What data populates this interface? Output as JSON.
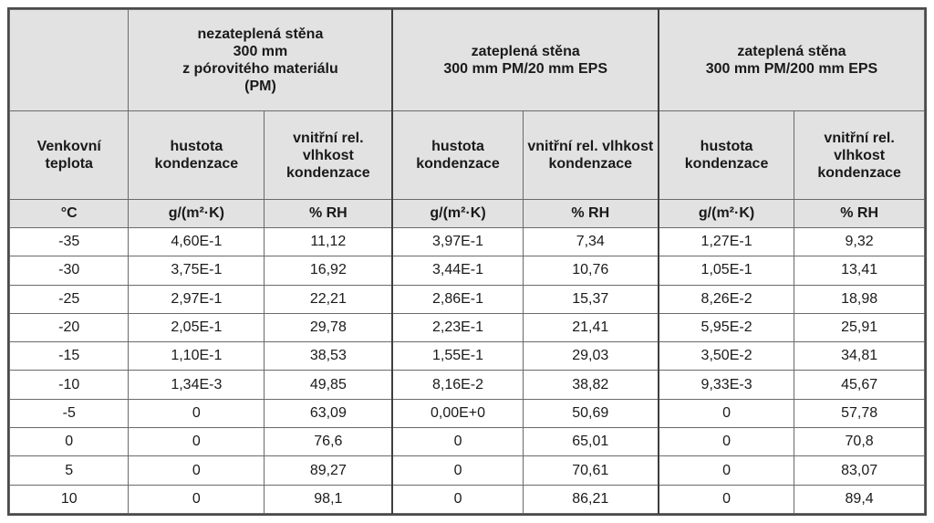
{
  "table": {
    "groups": [
      {
        "lines": [
          "nezateplená stěna",
          "300 mm",
          "z pórovitého materiálu",
          "(PM)"
        ]
      },
      {
        "lines": [
          "zateplená stěna",
          "300 mm PM/20 mm EPS"
        ]
      },
      {
        "lines": [
          "zateplená stěna",
          "300 mm PM/200 mm EPS"
        ]
      }
    ],
    "first_col_header": [
      "Venkovní",
      "teplota"
    ],
    "sub_headers": {
      "density": [
        "hustota",
        "kondenzace"
      ],
      "rh": [
        "vnitřní rel.",
        "vlhkost",
        "kondenzace"
      ]
    },
    "units": {
      "temp": "°C",
      "density": "g/(m²·K)",
      "rh": "% RH"
    },
    "rows": [
      [
        "-35",
        "4,60E-1",
        "11,12",
        "3,97E-1",
        "7,34",
        "1,27E-1",
        "9,32"
      ],
      [
        "-30",
        "3,75E-1",
        "16,92",
        "3,44E-1",
        "10,76",
        "1,05E-1",
        "13,41"
      ],
      [
        "-25",
        "2,97E-1",
        "22,21",
        "2,86E-1",
        "15,37",
        "8,26E-2",
        "18,98"
      ],
      [
        "-20",
        "2,05E-1",
        "29,78",
        "2,23E-1",
        "21,41",
        "5,95E-2",
        "25,91"
      ],
      [
        "-15",
        "1,10E-1",
        "38,53",
        "1,55E-1",
        "29,03",
        "3,50E-2",
        "34,81"
      ],
      [
        "-10",
        "1,34E-3",
        "49,85",
        "8,16E-2",
        "38,82",
        "9,33E-3",
        "45,67"
      ],
      [
        "-5",
        "0",
        "63,09",
        "0,00E+0",
        "50,69",
        "0",
        "57,78"
      ],
      [
        "0",
        "0",
        "76,6",
        "0",
        "65,01",
        "0",
        "70,8"
      ],
      [
        "5",
        "0",
        "89,27",
        "0",
        "70,61",
        "0",
        "83,07"
      ],
      [
        "10",
        "0",
        "98,1",
        "0",
        "86,21",
        "0",
        "89,4"
      ]
    ]
  }
}
